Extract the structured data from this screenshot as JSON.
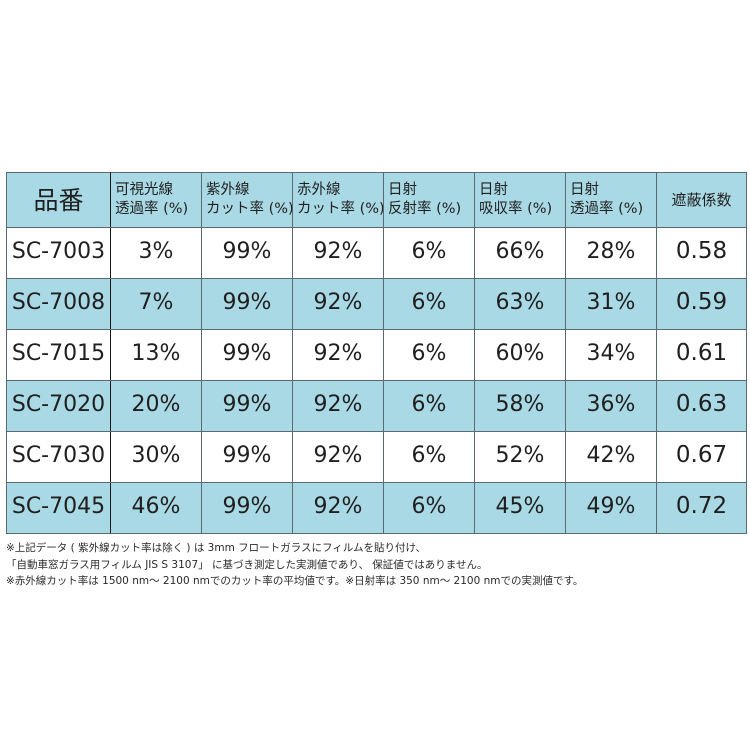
{
  "table": {
    "header": {
      "model": "品番",
      "columns": [
        {
          "line1": "可視光線",
          "line2": "透過率 (%)"
        },
        {
          "line1": "紫外線",
          "line2": "カット率 (%)"
        },
        {
          "line1": "赤外線",
          "line2": "カット率 (%)"
        },
        {
          "line1": "日射",
          "line2": "反射率 (%)"
        },
        {
          "line1": "日射",
          "line2": "吸収率 (%)"
        },
        {
          "line1": "日射",
          "line2": "透過率 (%)"
        }
      ],
      "shading": "遮蔽係数"
    },
    "rows": [
      {
        "model": "SC-7003",
        "visible": "3%",
        "uv": "99%",
        "ir": "92%",
        "reflect": "6%",
        "absorb": "66%",
        "transmit": "28%",
        "sc": "0.58"
      },
      {
        "model": "SC-7008",
        "visible": "7%",
        "uv": "99%",
        "ir": "92%",
        "reflect": "6%",
        "absorb": "63%",
        "transmit": "31%",
        "sc": "0.59"
      },
      {
        "model": "SC-7015",
        "visible": "13%",
        "uv": "99%",
        "ir": "92%",
        "reflect": "6%",
        "absorb": "60%",
        "transmit": "34%",
        "sc": "0.61"
      },
      {
        "model": "SC-7020",
        "visible": "20%",
        "uv": "99%",
        "ir": "92%",
        "reflect": "6%",
        "absorb": "58%",
        "transmit": "36%",
        "sc": "0.63"
      },
      {
        "model": "SC-7030",
        "visible": "30%",
        "uv": "99%",
        "ir": "92%",
        "reflect": "6%",
        "absorb": "52%",
        "transmit": "42%",
        "sc": "0.67"
      },
      {
        "model": "SC-7045",
        "visible": "46%",
        "uv": "99%",
        "ir": "92%",
        "reflect": "6%",
        "absorb": "45%",
        "transmit": "49%",
        "sc": "0.72"
      }
    ]
  },
  "notes": [
    "※上記データ ( 紫外線カット率は除く ) は 3mm フロートガラスにフィルムを貼り付け、",
    "「自動車窓ガラス用フィルム JIS S 3107」 に基づき測定した実測値であり、 保証値ではありません。",
    "※赤外線カット率は 1500 nm～ 2100 nmでのカット率の平均値です。※日射率は 350 nm～ 2100 nmでの実測値です。"
  ],
  "colors": {
    "header_bg": "#a9d9e5",
    "alt_row_bg": "#a9d9e5",
    "plain_row_bg": "#ffffff",
    "border": "#5a6a72",
    "text": "#1f1f1f"
  }
}
